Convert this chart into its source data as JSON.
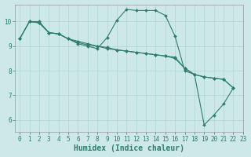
{
  "title": "",
  "xlabel": "Humidex (Indice chaleur)",
  "ylabel": "",
  "background_color": "#cce8e8",
  "line_color": "#2e7d6e",
  "xlim": [
    -0.5,
    23
  ],
  "ylim": [
    5.5,
    10.7
  ],
  "yticks": [
    6,
    7,
    8,
    9,
    10
  ],
  "xticks": [
    0,
    1,
    2,
    3,
    4,
    5,
    6,
    7,
    8,
    9,
    10,
    11,
    12,
    13,
    14,
    15,
    16,
    17,
    18,
    19,
    20,
    21,
    22,
    23
  ],
  "lines": [
    {
      "x": [
        0,
        1,
        2,
        3,
        4,
        5,
        6,
        7,
        8,
        9,
        10,
        11,
        12,
        13,
        14,
        15,
        16,
        17,
        18,
        19,
        20,
        21,
        22
      ],
      "y": [
        9.3,
        10.0,
        10.0,
        9.55,
        9.5,
        9.3,
        9.1,
        9.0,
        8.9,
        9.35,
        10.05,
        10.5,
        10.45,
        10.45,
        10.45,
        10.25,
        9.4,
        8.0,
        7.85,
        5.8,
        6.2,
        6.65,
        7.3
      ]
    },
    {
      "x": [
        0,
        1,
        2,
        3,
        4,
        5,
        6,
        7,
        8,
        9,
        10,
        11,
        12,
        13,
        14,
        15,
        16,
        17,
        18,
        19,
        20,
        21,
        22
      ],
      "y": [
        9.3,
        10.0,
        9.95,
        9.55,
        9.5,
        9.3,
        9.2,
        9.1,
        9.0,
        8.95,
        8.85,
        8.8,
        8.75,
        8.7,
        8.65,
        8.6,
        8.55,
        8.1,
        7.85,
        7.75,
        7.7,
        7.65,
        7.3
      ]
    },
    {
      "x": [
        0,
        1,
        2,
        3,
        4,
        5,
        6,
        7,
        8,
        9,
        10,
        11,
        12,
        13,
        14,
        15,
        16,
        17,
        18,
        19,
        20,
        21,
        22
      ],
      "y": [
        9.3,
        10.0,
        9.95,
        9.55,
        9.5,
        9.3,
        9.15,
        9.05,
        9.0,
        8.9,
        8.85,
        8.8,
        8.75,
        8.7,
        8.65,
        8.6,
        8.5,
        8.1,
        7.85,
        7.75,
        7.7,
        7.65,
        7.3
      ]
    }
  ],
  "grid_color": "#aad4d4",
  "tick_fontsize": 5.5,
  "label_fontsize": 7,
  "marker": "D",
  "marker_size": 2.0,
  "linewidth": 0.8
}
